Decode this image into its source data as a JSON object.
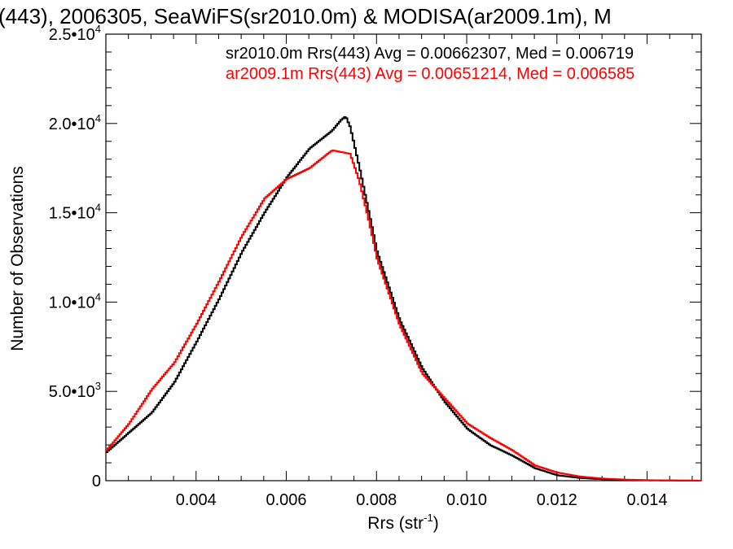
{
  "chart_data": {
    "type": "line",
    "title": "(443), 2006305, SeaWiFS(sr2010.0m) & MODISA(ar2009.1m), M",
    "xlabel": "Rrs (str",
    "xlabel_exponent": "-1",
    "xlabel_suffix": ")",
    "ylabel": "Number of Observations",
    "xlim": [
      0.002,
      0.0152
    ],
    "ylim": [
      0,
      25000
    ],
    "x_ticks": [
      {
        "value": 0.004,
        "label": "0.004"
      },
      {
        "value": 0.006,
        "label": "0.006"
      },
      {
        "value": 0.008,
        "label": "0.008"
      },
      {
        "value": 0.01,
        "label": "0.010"
      },
      {
        "value": 0.012,
        "label": "0.012"
      },
      {
        "value": 0.014,
        "label": "0.014"
      }
    ],
    "y_ticks": [
      {
        "value": 0,
        "mantissa": "0",
        "exponent": ""
      },
      {
        "value": 5000,
        "mantissa": "5.0•10",
        "exponent": "3"
      },
      {
        "value": 10000,
        "mantissa": "1.0•10",
        "exponent": "4"
      },
      {
        "value": 15000,
        "mantissa": "1.5•10",
        "exponent": "4"
      },
      {
        "value": 20000,
        "mantissa": "2.0•10",
        "exponent": "4"
      },
      {
        "value": 25000,
        "mantissa": "2.5•10",
        "exponent": "4"
      }
    ],
    "legend_placement": "top-right",
    "series": [
      {
        "name": "sr2010.0m",
        "label": "sr2010.0m Rrs(443) Avg = 0.00662307, Med = 0.006719",
        "color": "#000000",
        "x": [
          0.002,
          0.0025,
          0.003,
          0.0035,
          0.004,
          0.0045,
          0.005,
          0.0055,
          0.006,
          0.0065,
          0.007,
          0.0072,
          0.0073,
          0.0074,
          0.0076,
          0.0078,
          0.008,
          0.0085,
          0.009,
          0.0095,
          0.01,
          0.0105,
          0.011,
          0.0115,
          0.012,
          0.0125,
          0.013,
          0.0135,
          0.014,
          0.0145,
          0.015,
          0.0152
        ],
        "y": [
          1600,
          2700,
          3800,
          5500,
          7800,
          10200,
          12800,
          15000,
          17000,
          18600,
          19600,
          20200,
          20400,
          19800,
          17600,
          15200,
          12800,
          9000,
          6300,
          4400,
          2900,
          2000,
          1400,
          700,
          300,
          150,
          80,
          40,
          20,
          10,
          5,
          0
        ]
      },
      {
        "name": "ar2009.1m",
        "label": "ar2009.1m Rrs(443) Avg = 0.00651214, Med = 0.006585",
        "color": "#ff0000",
        "x": [
          0.002,
          0.0025,
          0.003,
          0.0035,
          0.004,
          0.0045,
          0.005,
          0.0055,
          0.006,
          0.0065,
          0.007,
          0.0072,
          0.0074,
          0.0076,
          0.0078,
          0.008,
          0.0085,
          0.009,
          0.0095,
          0.01,
          0.0105,
          0.011,
          0.0115,
          0.012,
          0.0125,
          0.013,
          0.0135,
          0.014,
          0.0145,
          0.015,
          0.0152
        ],
        "y": [
          1700,
          3200,
          5100,
          6600,
          8800,
          11200,
          13700,
          15800,
          16900,
          17500,
          18500,
          18400,
          18300,
          16800,
          14700,
          12400,
          8700,
          6000,
          4600,
          3200,
          2400,
          1700,
          850,
          450,
          230,
          120,
          60,
          30,
          15,
          8,
          0
        ]
      }
    ]
  }
}
